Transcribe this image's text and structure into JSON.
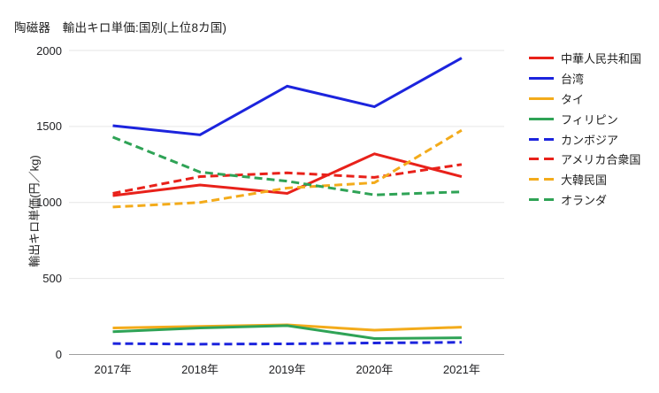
{
  "chart_data": {
    "type": "line",
    "title": "陶磁器　輸出キロ単価:国別(上位8カ国)",
    "xlabel": "",
    "ylabel": "輸出キロ単価(円／kg)",
    "categories": [
      "2017年",
      "2018年",
      "2019年",
      "2020年",
      "2021年"
    ],
    "y_ticks": [
      0,
      500,
      1000,
      1500,
      2000
    ],
    "ylim": [
      0,
      2000
    ],
    "grid": "horizontal",
    "legend_position": "right",
    "background_color": "#ffffff",
    "gridline_color": "#e6e6e6",
    "baseline_color": "#9e9e9e",
    "series": [
      {
        "key": "china",
        "name": "中華人民共和国",
        "color": "#e8211a",
        "dash": false,
        "values": [
          1045,
          1115,
          1060,
          1320,
          1170
        ]
      },
      {
        "key": "taiwan",
        "name": "台湾",
        "color": "#1c24dd",
        "dash": false,
        "values": [
          1505,
          1445,
          1765,
          1630,
          1950
        ]
      },
      {
        "key": "thailand",
        "name": "タイ",
        "color": "#f3ab1b",
        "dash": false,
        "values": [
          175,
          185,
          195,
          160,
          180
        ]
      },
      {
        "key": "philippines",
        "name": "フィリピン",
        "color": "#2fa356",
        "dash": false,
        "values": [
          150,
          175,
          190,
          105,
          110
        ]
      },
      {
        "key": "cambodia",
        "name": "カンボジア",
        "color": "#1c24dd",
        "dash": true,
        "values": [
          72,
          68,
          70,
          76,
          80
        ]
      },
      {
        "key": "usa",
        "name": "アメリカ合衆国",
        "color": "#e8211a",
        "dash": true,
        "values": [
          1060,
          1170,
          1195,
          1165,
          1250
        ]
      },
      {
        "key": "south-korea",
        "name": "大韓民国",
        "color": "#f3ab1b",
        "dash": true,
        "values": [
          970,
          1000,
          1095,
          1130,
          1475
        ]
      },
      {
        "key": "netherlands",
        "name": "オランダ",
        "color": "#2fa356",
        "dash": true,
        "values": [
          1430,
          1200,
          1140,
          1050,
          1070
        ]
      }
    ]
  }
}
